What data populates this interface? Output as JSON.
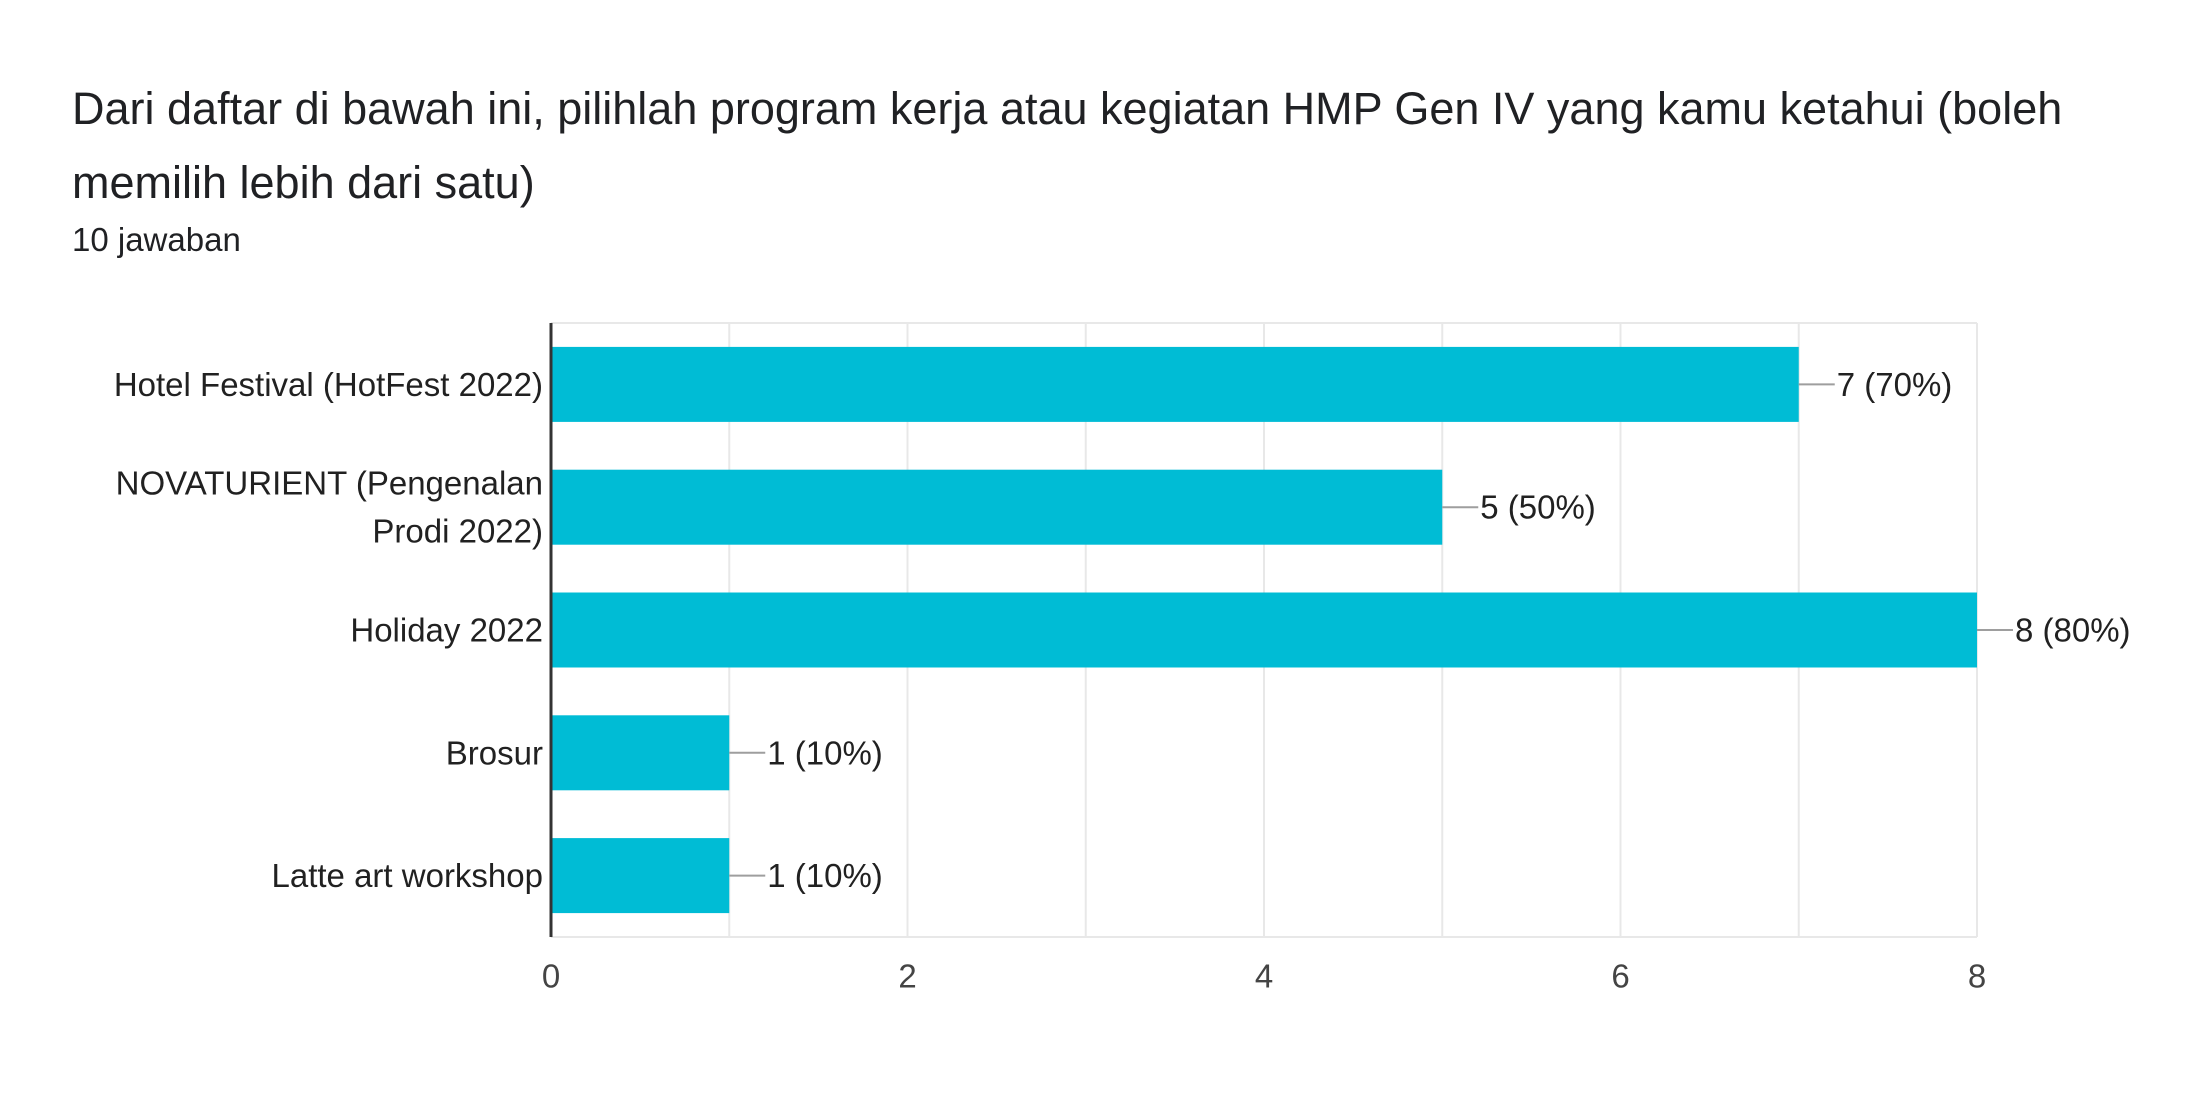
{
  "question": {
    "title": "Dari daftar di bawah ini, pilihlah program kerja atau kegiatan HMP Gen IV yang kamu ketahui (boleh memilih lebih dari satu)",
    "response_count": "10 jawaban"
  },
  "colors": {
    "bar": "#00bcd5",
    "grid": "#e8e8e8",
    "axis": "#333333",
    "label_text": "#212121",
    "tick_text": "#444444",
    "leader": "#9e9e9e"
  },
  "chart_data": {
    "type": "bar",
    "orientation": "horizontal",
    "categories": [
      [
        "Hotel Festival (HotFest 2022)"
      ],
      [
        "NOVATURIENT (Pengenalan",
        "Prodi 2022)"
      ],
      [
        "Holiday 2022"
      ],
      [
        "Brosur"
      ],
      [
        "Latte art workshop"
      ]
    ],
    "values": [
      7,
      5,
      8,
      1,
      1
    ],
    "data_labels": [
      "7 (70%)",
      "5 (50%)",
      "8 (80%)",
      "1 (10%)",
      "1 (10%)"
    ],
    "xlim": [
      0,
      8
    ],
    "xticks": [
      0,
      2,
      4,
      6,
      8
    ],
    "grid": true,
    "legend": "none"
  }
}
